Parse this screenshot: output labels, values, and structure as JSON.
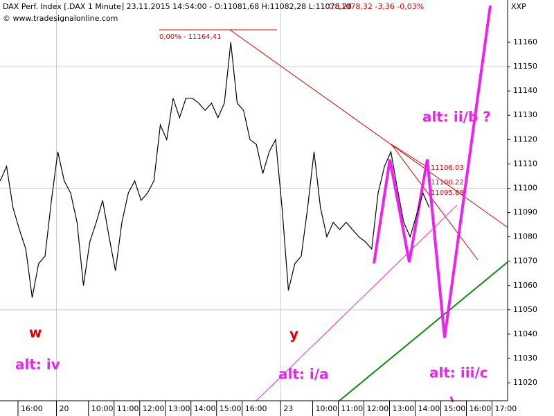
{
  "chart_data": {
    "type": "line",
    "title": "DAX Perf. Index [.DAX  1 Minute] 23.11.2015 14:54:00 - O:11081,68 H:11082,28 L:11078,28",
    "title_close": "C:11078,32 -3,36 -0,03%",
    "copyright": "© www.tradesignalonline.com",
    "axis_symbol": "XXP",
    "categories": [
      null,
      null,
      null,
      "16:00",
      null,
      null,
      null,
      null,
      null,
      "20",
      null,
      null,
      null,
      null,
      "10:00",
      null,
      null,
      null,
      "11:00",
      null,
      null,
      null,
      "12:00",
      null,
      null,
      null,
      "13:00",
      null,
      null,
      null,
      "14:00",
      null,
      null,
      null,
      "15:00",
      null,
      null,
      null,
      "16:00",
      null,
      null,
      null,
      null,
      null,
      "23",
      null,
      null,
      null,
      null,
      "10:00",
      null,
      null,
      null,
      "11:00",
      null,
      null,
      null,
      "12:00",
      null,
      null,
      null,
      "13:00",
      null,
      null,
      null,
      "14:00",
      null,
      null,
      null,
      "15:00",
      null,
      null,
      null,
      "16:00",
      null,
      null,
      null,
      "17:00",
      null,
      null
    ],
    "values": [
      11103,
      11109,
      11092,
      11083,
      11075,
      11055,
      11069,
      11072,
      11095,
      11115,
      11103,
      11098,
      11086,
      11060,
      11078,
      11086,
      11095,
      11080,
      11066,
      11086,
      11098,
      11103,
      11095,
      11098,
      11103,
      11126,
      11120,
      11137,
      11129,
      11137,
      11137,
      11135,
      11132,
      11135,
      11129,
      11135,
      11160,
      11135,
      11132,
      11120,
      11118,
      11106,
      11115,
      11120,
      11092,
      11058,
      11069,
      11072,
      11092,
      11115,
      11092,
      11080,
      11086,
      11083,
      11086,
      11083,
      11080,
      11078,
      11075,
      11098,
      11109,
      11115,
      11100,
      11086,
      11080,
      11089,
      11098,
      11092,
      null,
      null,
      null,
      null,
      null,
      null,
      null,
      null,
      null,
      null,
      null,
      null
    ],
    "color": "#000000",
    "ylim": [
      11012.6,
      11177.4
    ],
    "yticks": [
      11020,
      11030,
      11040,
      11050,
      11060,
      11070,
      11080,
      11090,
      11100,
      11110,
      11120,
      11130,
      11140,
      11150,
      11160
    ],
    "grid": true,
    "annotations": [
      "0,00% - 11164,41",
      "11106,03",
      "11100,22",
      "11095,88",
      "w",
      "y",
      "alt: iv",
      "alt: i/a",
      "alt: iii/c",
      "alt: ii/b ?"
    ]
  }
}
